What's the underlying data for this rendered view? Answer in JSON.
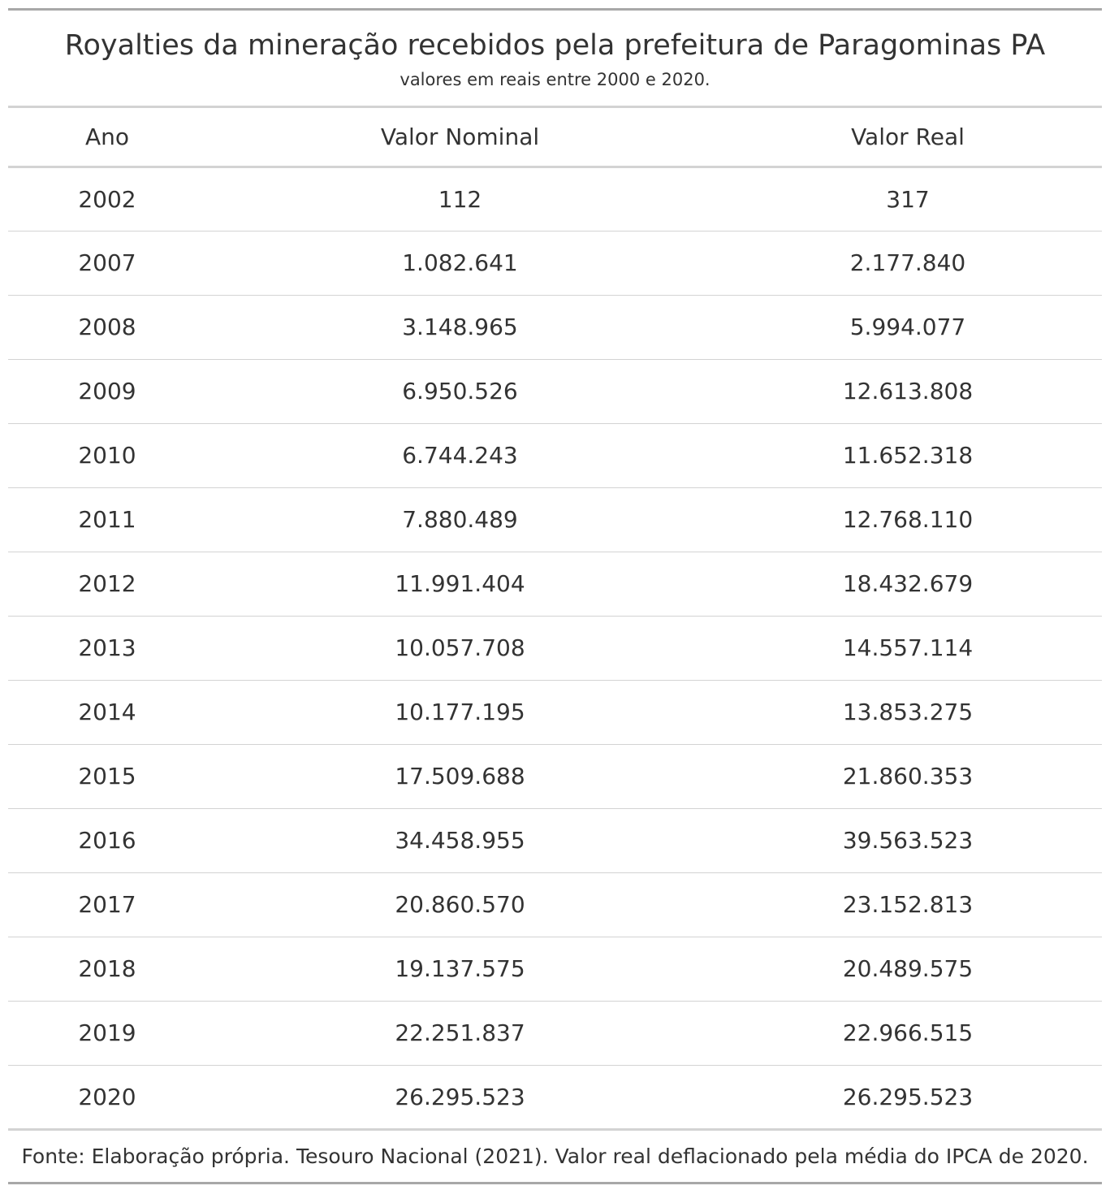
{
  "title": "Royalties da mineração recebidos pela prefeitura de Paragominas PA",
  "subtitle": "valores em reais entre 2000 e 2020.",
  "columns": [
    "Ano",
    "Valor Nominal",
    "Valor Real"
  ],
  "rows": [
    [
      "2002",
      "112",
      "317"
    ],
    [
      "2007",
      "1.082.641",
      "2.177.840"
    ],
    [
      "2008",
      "3.148.965",
      "5.994.077"
    ],
    [
      "2009",
      "6.950.526",
      "12.613.808"
    ],
    [
      "2010",
      "6.744.243",
      "11.652.318"
    ],
    [
      "2011",
      "7.880.489",
      "12.768.110"
    ],
    [
      "2012",
      "11.991.404",
      "18.432.679"
    ],
    [
      "2013",
      "10.057.708",
      "14.557.114"
    ],
    [
      "2014",
      "10.177.195",
      "13.853.275"
    ],
    [
      "2015",
      "17.509.688",
      "21.860.353"
    ],
    [
      "2016",
      "34.458.955",
      "39.563.523"
    ],
    [
      "2017",
      "20.860.570",
      "23.152.813"
    ],
    [
      "2018",
      "19.137.575",
      "20.489.575"
    ],
    [
      "2019",
      "22.251.837",
      "22.966.515"
    ],
    [
      "2020",
      "26.295.523",
      "26.295.523"
    ]
  ],
  "footer": "Fonte: Elaboração própria. Tesouro Nacional (2021). Valor real deflacionado pela média do IPCA de 2020.",
  "colors": {
    "text": "#333333",
    "outer_rule": "#a8a8a8",
    "inner_rule": "#d3d3d3"
  }
}
